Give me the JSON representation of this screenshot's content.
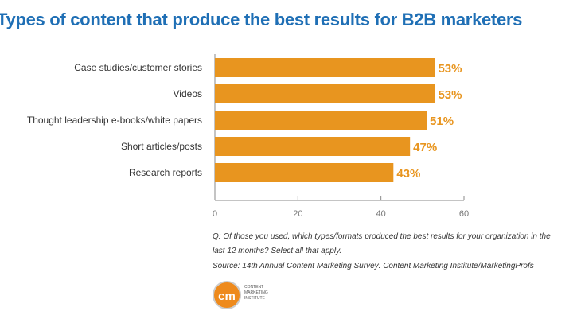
{
  "chart_data": {
    "type": "bar",
    "orientation": "horizontal",
    "title": "Types of content that produce the best results for B2B marketers",
    "categories": [
      "Case studies/customer stories",
      "Videos",
      "Thought leadership e-books/white papers",
      "Short articles/posts",
      "Research reports"
    ],
    "values": [
      53,
      53,
      51,
      47,
      43
    ],
    "data_labels": [
      "53%",
      "53%",
      "51%",
      "47%",
      "43%"
    ],
    "xlim": [
      0,
      60
    ],
    "xticks": [
      "0",
      "20",
      "40",
      "60"
    ],
    "xlabel": "",
    "ylabel": "",
    "grid": false,
    "colors": {
      "bar": "#e8951f",
      "label": "#e8951f",
      "title": "#1f6fb5"
    }
  },
  "footnote": {
    "question_line1": "Q: Of those you used, which types/formats produced the best results for your organization in the",
    "question_line2": "last 12 months? Select all that apply.",
    "source": "Source: 14th Annual Content Marketing Survey: Content Marketing Institute/MarketingProfs"
  },
  "logo": {
    "mark": "cm",
    "text": [
      "CONTENT",
      "MARKETING",
      "INSTITUTE"
    ]
  }
}
